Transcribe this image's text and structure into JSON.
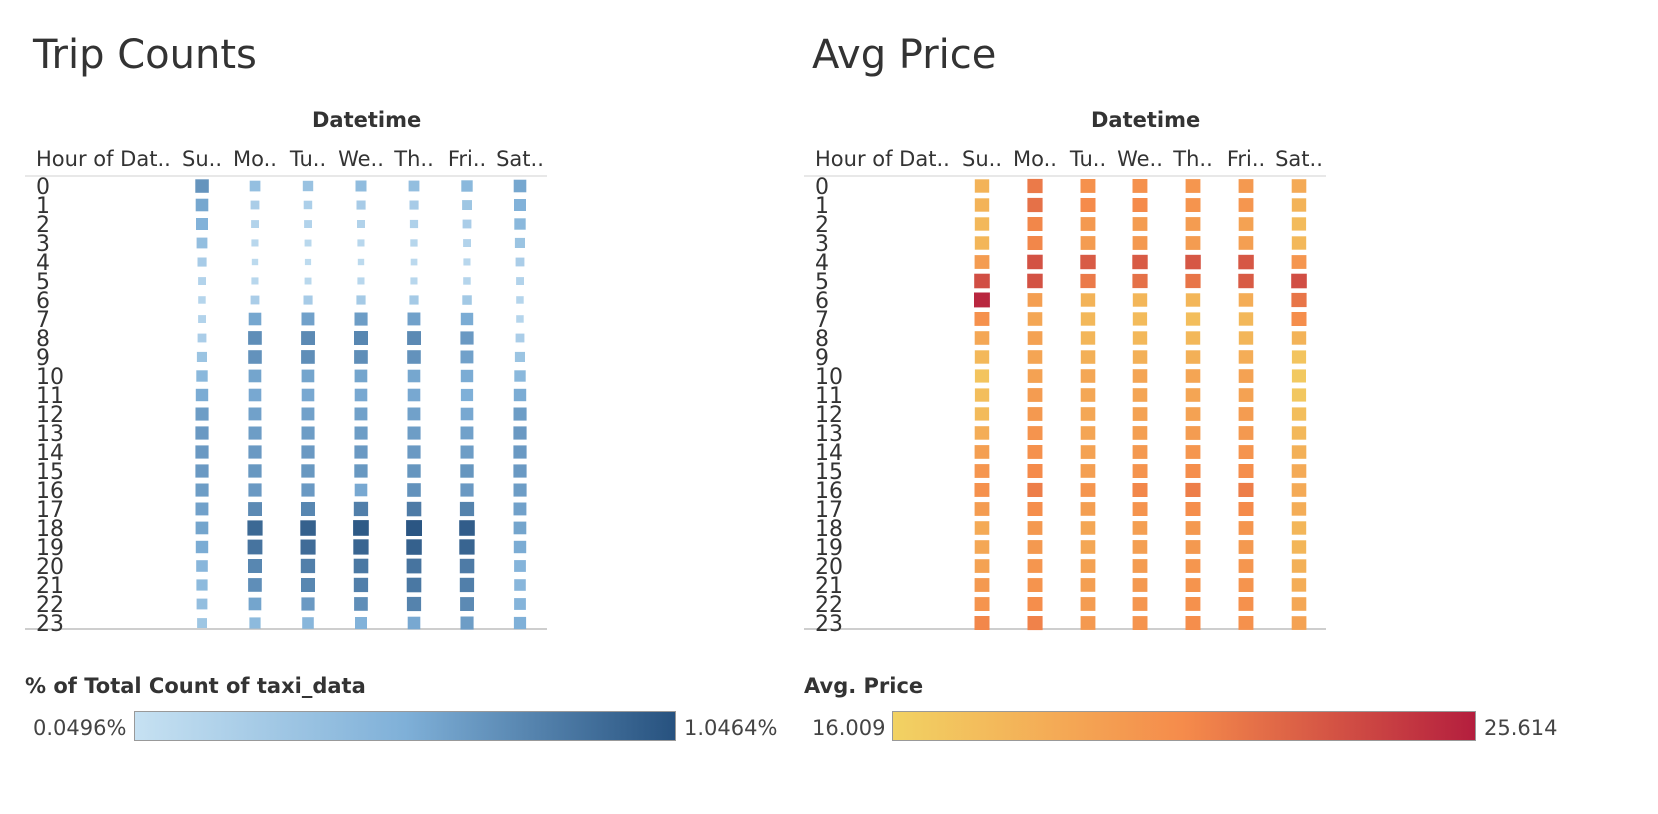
{
  "chart_data": [
    {
      "type": "heatmap",
      "title": "Trip Counts",
      "column_header": "Datetime",
      "row_header": "Hour of Dat..",
      "columns": [
        "Su..",
        "Mo..",
        "Tu..",
        "We..",
        "Th..",
        "Fri..",
        "Sat.."
      ],
      "rows": [
        "0",
        "1",
        "2",
        "3",
        "4",
        "5",
        "6",
        "7",
        "8",
        "9",
        "10",
        "11",
        "12",
        "13",
        "14",
        "15",
        "16",
        "17",
        "18",
        "19",
        "20",
        "21",
        "22",
        "23"
      ],
      "values": [
        [
          0.65,
          0.35,
          0.32,
          0.38,
          0.36,
          0.42,
          0.55
        ],
        [
          0.55,
          0.2,
          0.18,
          0.22,
          0.22,
          0.28,
          0.48
        ],
        [
          0.48,
          0.14,
          0.14,
          0.15,
          0.16,
          0.2,
          0.42
        ],
        [
          0.36,
          0.1,
          0.09,
          0.1,
          0.11,
          0.14,
          0.3
        ],
        [
          0.22,
          0.07,
          0.06,
          0.07,
          0.08,
          0.1,
          0.2
        ],
        [
          0.14,
          0.1,
          0.09,
          0.1,
          0.1,
          0.12,
          0.14
        ],
        [
          0.12,
          0.2,
          0.22,
          0.23,
          0.23,
          0.25,
          0.12
        ],
        [
          0.14,
          0.55,
          0.58,
          0.6,
          0.58,
          0.52,
          0.12
        ],
        [
          0.2,
          0.68,
          0.7,
          0.72,
          0.7,
          0.62,
          0.2
        ],
        [
          0.3,
          0.66,
          0.68,
          0.68,
          0.66,
          0.58,
          0.3
        ],
        [
          0.42,
          0.56,
          0.56,
          0.56,
          0.55,
          0.52,
          0.42
        ],
        [
          0.52,
          0.54,
          0.54,
          0.54,
          0.54,
          0.5,
          0.52
        ],
        [
          0.6,
          0.58,
          0.58,
          0.58,
          0.58,
          0.54,
          0.6
        ],
        [
          0.62,
          0.6,
          0.6,
          0.6,
          0.6,
          0.58,
          0.62
        ],
        [
          0.62,
          0.62,
          0.62,
          0.62,
          0.62,
          0.6,
          0.62
        ],
        [
          0.62,
          0.63,
          0.63,
          0.63,
          0.64,
          0.64,
          0.62
        ],
        [
          0.6,
          0.62,
          0.62,
          0.54,
          0.66,
          0.62,
          0.6
        ],
        [
          0.58,
          0.7,
          0.72,
          0.76,
          0.78,
          0.74,
          0.58
        ],
        [
          0.56,
          0.88,
          0.92,
          0.96,
          0.98,
          0.94,
          0.56
        ],
        [
          0.52,
          0.82,
          0.86,
          0.9,
          0.92,
          0.9,
          0.52
        ],
        [
          0.44,
          0.72,
          0.76,
          0.8,
          0.82,
          0.78,
          0.46
        ],
        [
          0.4,
          0.68,
          0.72,
          0.76,
          0.8,
          0.76,
          0.44
        ],
        [
          0.36,
          0.56,
          0.62,
          0.68,
          0.74,
          0.7,
          0.46
        ],
        [
          0.28,
          0.4,
          0.44,
          0.48,
          0.54,
          0.6,
          0.5
        ]
      ],
      "legend": {
        "title": "% of Total Count of taxi_data",
        "min_label": "0.0496%",
        "max_label": "1.0464%",
        "color_start": "#c6e1f2",
        "color_mid": "#7fb0d8",
        "color_end": "#27527f"
      }
    },
    {
      "type": "heatmap",
      "title": "Avg Price",
      "column_header": "Datetime",
      "row_header": "Hour of Dat..",
      "columns": [
        "Su..",
        "Mo..",
        "Tu..",
        "We..",
        "Th..",
        "Fri..",
        "Sat.."
      ],
      "rows": [
        "0",
        "1",
        "2",
        "3",
        "4",
        "5",
        "6",
        "7",
        "8",
        "9",
        "10",
        "11",
        "12",
        "13",
        "14",
        "15",
        "16",
        "17",
        "18",
        "19",
        "20",
        "21",
        "22",
        "23"
      ],
      "values": [
        [
          0.22,
          0.58,
          0.46,
          0.46,
          0.42,
          0.4,
          0.28
        ],
        [
          0.22,
          0.62,
          0.5,
          0.5,
          0.44,
          0.42,
          0.22
        ],
        [
          0.18,
          0.52,
          0.4,
          0.38,
          0.38,
          0.34,
          0.16
        ],
        [
          0.2,
          0.52,
          0.38,
          0.4,
          0.38,
          0.36,
          0.18
        ],
        [
          0.38,
          0.76,
          0.72,
          0.72,
          0.74,
          0.74,
          0.42
        ],
        [
          0.78,
          0.76,
          0.58,
          0.62,
          0.6,
          0.72,
          0.78
        ],
        [
          0.96,
          0.36,
          0.22,
          0.2,
          0.2,
          0.26,
          0.6
        ],
        [
          0.46,
          0.3,
          0.18,
          0.16,
          0.14,
          0.18,
          0.48
        ],
        [
          0.3,
          0.34,
          0.2,
          0.18,
          0.18,
          0.2,
          0.22
        ],
        [
          0.18,
          0.32,
          0.24,
          0.24,
          0.24,
          0.26,
          0.1
        ],
        [
          0.1,
          0.34,
          0.3,
          0.32,
          0.32,
          0.34,
          0.06
        ],
        [
          0.14,
          0.38,
          0.3,
          0.32,
          0.32,
          0.34,
          0.08
        ],
        [
          0.16,
          0.4,
          0.3,
          0.34,
          0.34,
          0.38,
          0.14
        ],
        [
          0.26,
          0.44,
          0.32,
          0.36,
          0.38,
          0.4,
          0.18
        ],
        [
          0.36,
          0.46,
          0.34,
          0.4,
          0.42,
          0.44,
          0.24
        ],
        [
          0.42,
          0.5,
          0.36,
          0.44,
          0.48,
          0.48,
          0.28
        ],
        [
          0.46,
          0.56,
          0.42,
          0.52,
          0.56,
          0.56,
          0.28
        ],
        [
          0.38,
          0.48,
          0.36,
          0.44,
          0.48,
          0.5,
          0.26
        ],
        [
          0.28,
          0.4,
          0.3,
          0.36,
          0.4,
          0.42,
          0.2
        ],
        [
          0.3,
          0.4,
          0.3,
          0.36,
          0.4,
          0.4,
          0.2
        ],
        [
          0.34,
          0.42,
          0.34,
          0.38,
          0.42,
          0.42,
          0.24
        ],
        [
          0.4,
          0.44,
          0.36,
          0.4,
          0.44,
          0.44,
          0.26
        ],
        [
          0.44,
          0.48,
          0.38,
          0.42,
          0.46,
          0.46,
          0.3
        ],
        [
          0.52,
          0.54,
          0.4,
          0.44,
          0.48,
          0.46,
          0.34
        ]
      ],
      "legend": {
        "title": "Avg. Price",
        "min_label": "16.009",
        "max_label": "25.614",
        "color_start": "#f2d263",
        "color_mid": "#f58b4b",
        "color_end": "#b41e3e"
      }
    }
  ]
}
